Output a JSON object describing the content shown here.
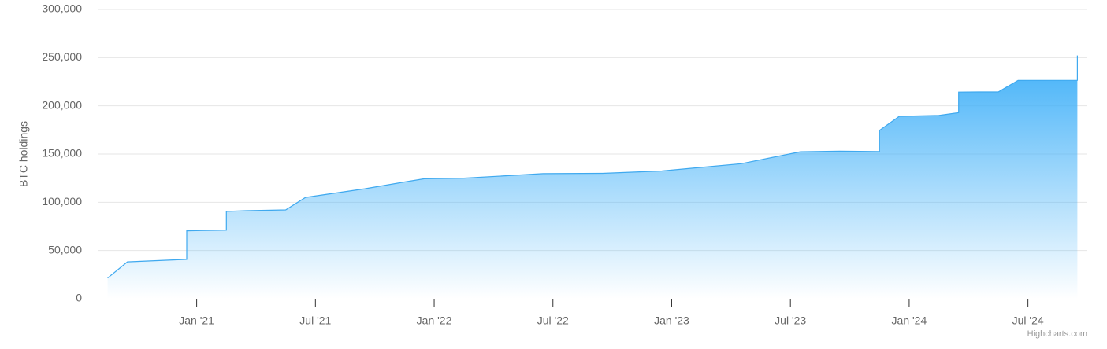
{
  "chart_data": {
    "type": "area",
    "y_label": "BTC holdings",
    "credits": "Highcharts.com",
    "x": [
      "2020-08",
      "2020-09",
      "2020-12",
      "2020-12",
      "2021-02",
      "2021-02",
      "2021-03",
      "2021-05",
      "2021-06",
      "2021-09",
      "2021-11",
      "2021-12",
      "2022-02",
      "2022-06",
      "2022-09",
      "2022-12",
      "2023-04",
      "2023-07",
      "2023-09",
      "2023-11",
      "2023-11",
      "2023-12",
      "2024-02",
      "2024-03",
      "2024-03",
      "2024-04",
      "2024-05",
      "2024-06",
      "2024-09",
      "2024-09",
      "2024-09"
    ],
    "series": [
      {
        "name": "BTC holdings",
        "color": "#3fa9ef",
        "values": [
          21454,
          38250,
          40824,
          70470,
          71079,
          90531,
          91326,
          92079,
          105085,
          114042,
          121044,
          124391,
          125051,
          129699,
          130000,
          132500,
          140000,
          152333,
          153000,
          152500,
          174530,
          189150,
          190000,
          193000,
          214246,
          214400,
          214400,
          226331,
          226500,
          244800,
          252220
        ]
      }
    ],
    "xlim": [
      "2020-08",
      "2024-10"
    ],
    "xticks": [
      {
        "value": "2021-01",
        "label": "Jan '21"
      },
      {
        "value": "2021-07",
        "label": "Jul '21"
      },
      {
        "value": "2022-01",
        "label": "Jan '22"
      },
      {
        "value": "2022-07",
        "label": "Jul '22"
      },
      {
        "value": "2023-01",
        "label": "Jan '23"
      },
      {
        "value": "2023-07",
        "label": "Jul '23"
      },
      {
        "value": "2024-01",
        "label": "Jan '24"
      },
      {
        "value": "2024-07",
        "label": "Jul '24"
      }
    ],
    "ylim": [
      0,
      300000
    ],
    "yticks": [
      0,
      {
        "value": 50000,
        "label": "50,000"
      },
      {
        "value": 100000,
        "label": "100,000"
      },
      {
        "value": 150000,
        "label": "150,000"
      },
      {
        "value": 200000,
        "label": "200,000"
      },
      {
        "value": 250000,
        "label": "250,000"
      },
      {
        "value": 300000,
        "label": "300,000"
      }
    ],
    "grid": true
  }
}
